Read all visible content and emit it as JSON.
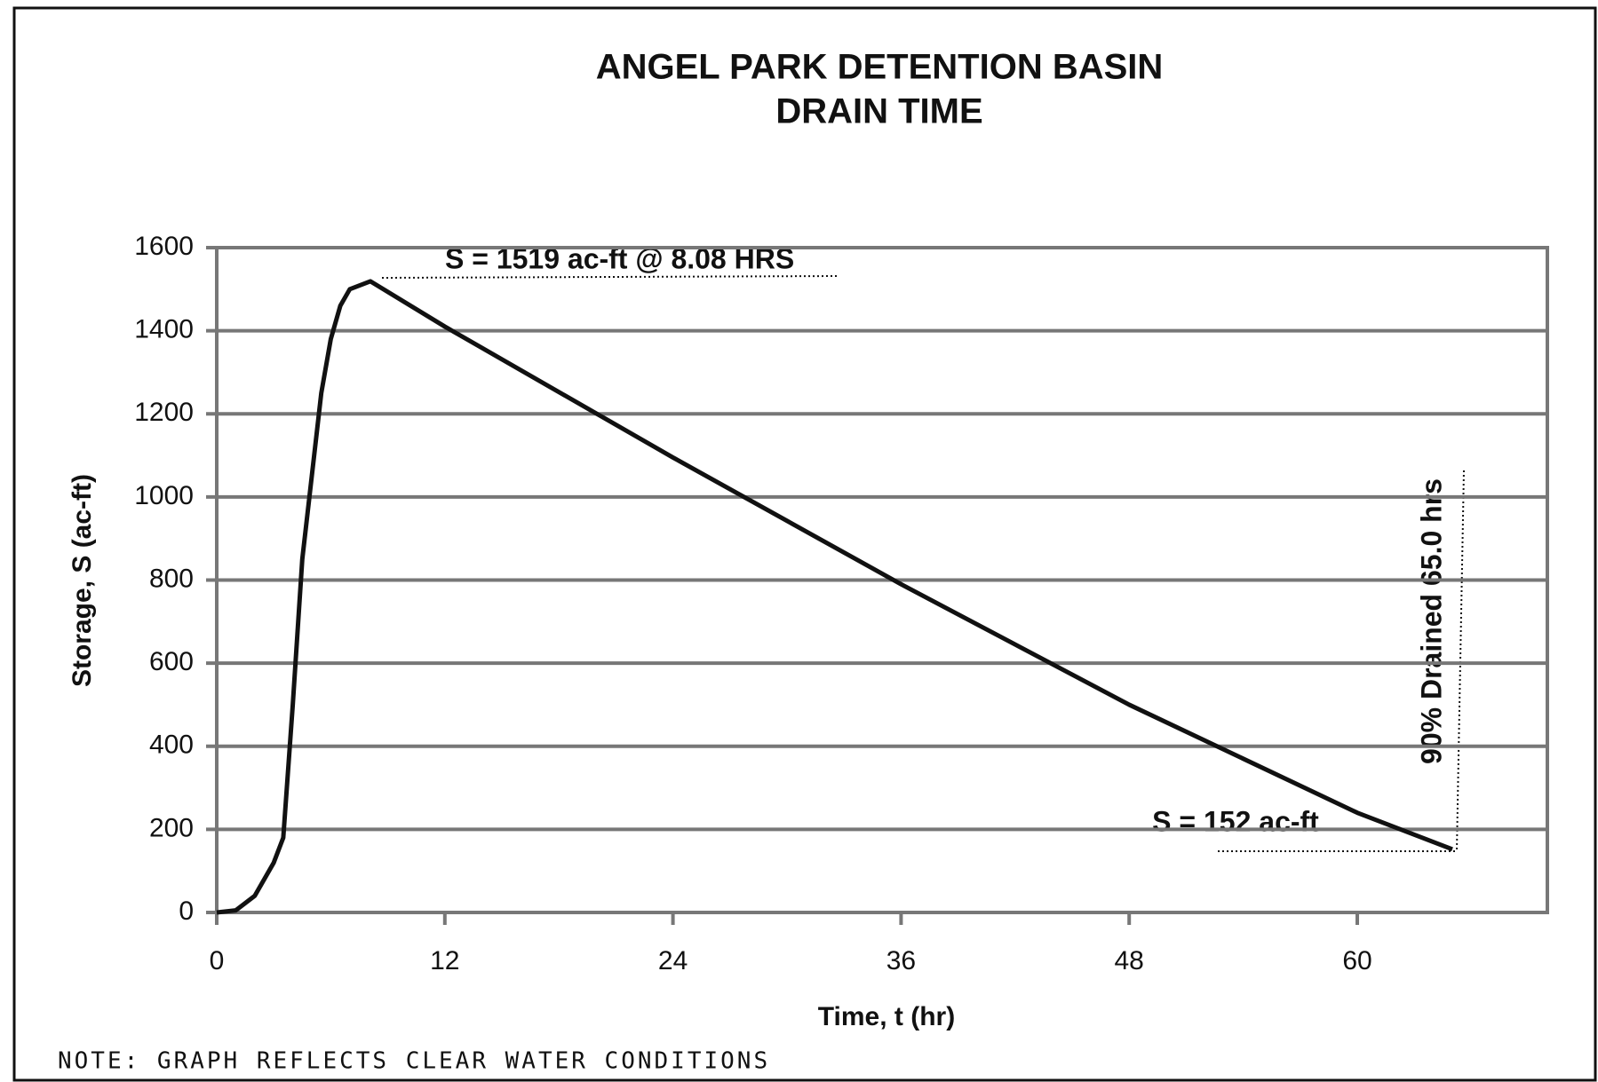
{
  "chart_data": {
    "type": "line",
    "title": "ANGEL PARK DETENTION BASIN",
    "subtitle": "DRAIN TIME",
    "x_label": "Time, t (hr)",
    "y_label": "Storage, S (ac-ft)",
    "note": "NOTE: GRAPH REFLECTS CLEAR WATER CONDITIONS",
    "annotations": [
      "S = 1519 ac-ft @ 8.08 HRS",
      "S = 152 ac-ft",
      "90% Drained  65.0 hrs"
    ],
    "x": [
      0,
      1,
      2,
      3,
      3.5,
      4,
      4.5,
      5,
      5.5,
      6,
      6.5,
      7,
      8.08,
      12,
      24,
      36,
      48,
      60,
      65
    ],
    "series": [
      {
        "name": "Storage",
        "color": "#111111",
        "values": [
          0,
          5,
          40,
          120,
          180,
          500,
          850,
          1050,
          1250,
          1380,
          1460,
          1500,
          1519,
          1410,
          1095,
          790,
          500,
          240,
          152
        ]
      }
    ],
    "xlim": [
      0,
      70
    ],
    "xticks": [
      0,
      12,
      24,
      36,
      48,
      60
    ],
    "ylim": [
      0,
      1600
    ],
    "yticks": [
      0,
      200,
      400,
      600,
      800,
      1000,
      1200,
      1400,
      1600
    ],
    "grid": true
  }
}
